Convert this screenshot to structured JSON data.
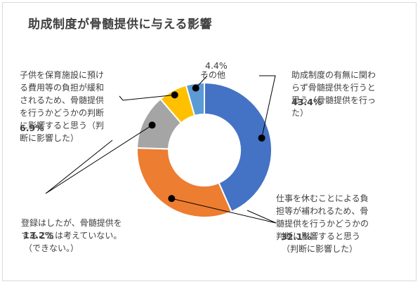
{
  "chart_data": {
    "type": "pie",
    "donut": true,
    "title": "助成制度が骨髄提供に与える影響",
    "slices": [
      {
        "label": "助成制度の有無に関わらず骨髄提供を行うと思う（骨髄提供を行った）",
        "value": 43.4,
        "value_label": "43.4%",
        "color": "#4472C4"
      },
      {
        "label": "仕事を休むことによる負担等が補われるため、骨髄提供を行うかどうかの判断に影響すると思う（判断に影響した）",
        "value": 32.1,
        "value_label": "32.1%",
        "color": "#ED7D31"
      },
      {
        "label": "登録はしたが、骨髄提供をすることは考えていない。（できない。）",
        "value": 13.2,
        "value_label": "13.2%",
        "color": "#A5A5A5"
      },
      {
        "label": "子供を保育施設に預ける費用等の負担が緩和されるため、骨髄提供を行うかどうかの判断に影響すると思う（判断に影響した）",
        "value": 6.9,
        "value_label": "6.9%",
        "color": "#FFC000"
      },
      {
        "label": "その他",
        "value": 4.4,
        "value_label": "4.4%",
        "color": "#5B9BD5"
      }
    ]
  },
  "labels": {
    "s0": [
      "助成制度の有無に関わ",
      "らず骨髄提供を行うと",
      "思う（骨髄提供を行っ",
      "た）"
    ],
    "s1": [
      "仕事を休むことによる負",
      "担等が補われるため、骨",
      "髄提供を行うかどうかの",
      "判断に影響すると思う",
      "（判断に影響した）"
    ],
    "s2": [
      "登録はしたが、骨髄提供を",
      "することは考えていない。",
      "（できない。）"
    ],
    "s3": [
      "子供を保育施設に預け",
      "る費用等の負担が緩和",
      "されるため、骨髄提供",
      "を行うかどうかの判断",
      "に影響すると思う（判",
      "断に影響した）"
    ],
    "s4": [
      "その他"
    ]
  }
}
